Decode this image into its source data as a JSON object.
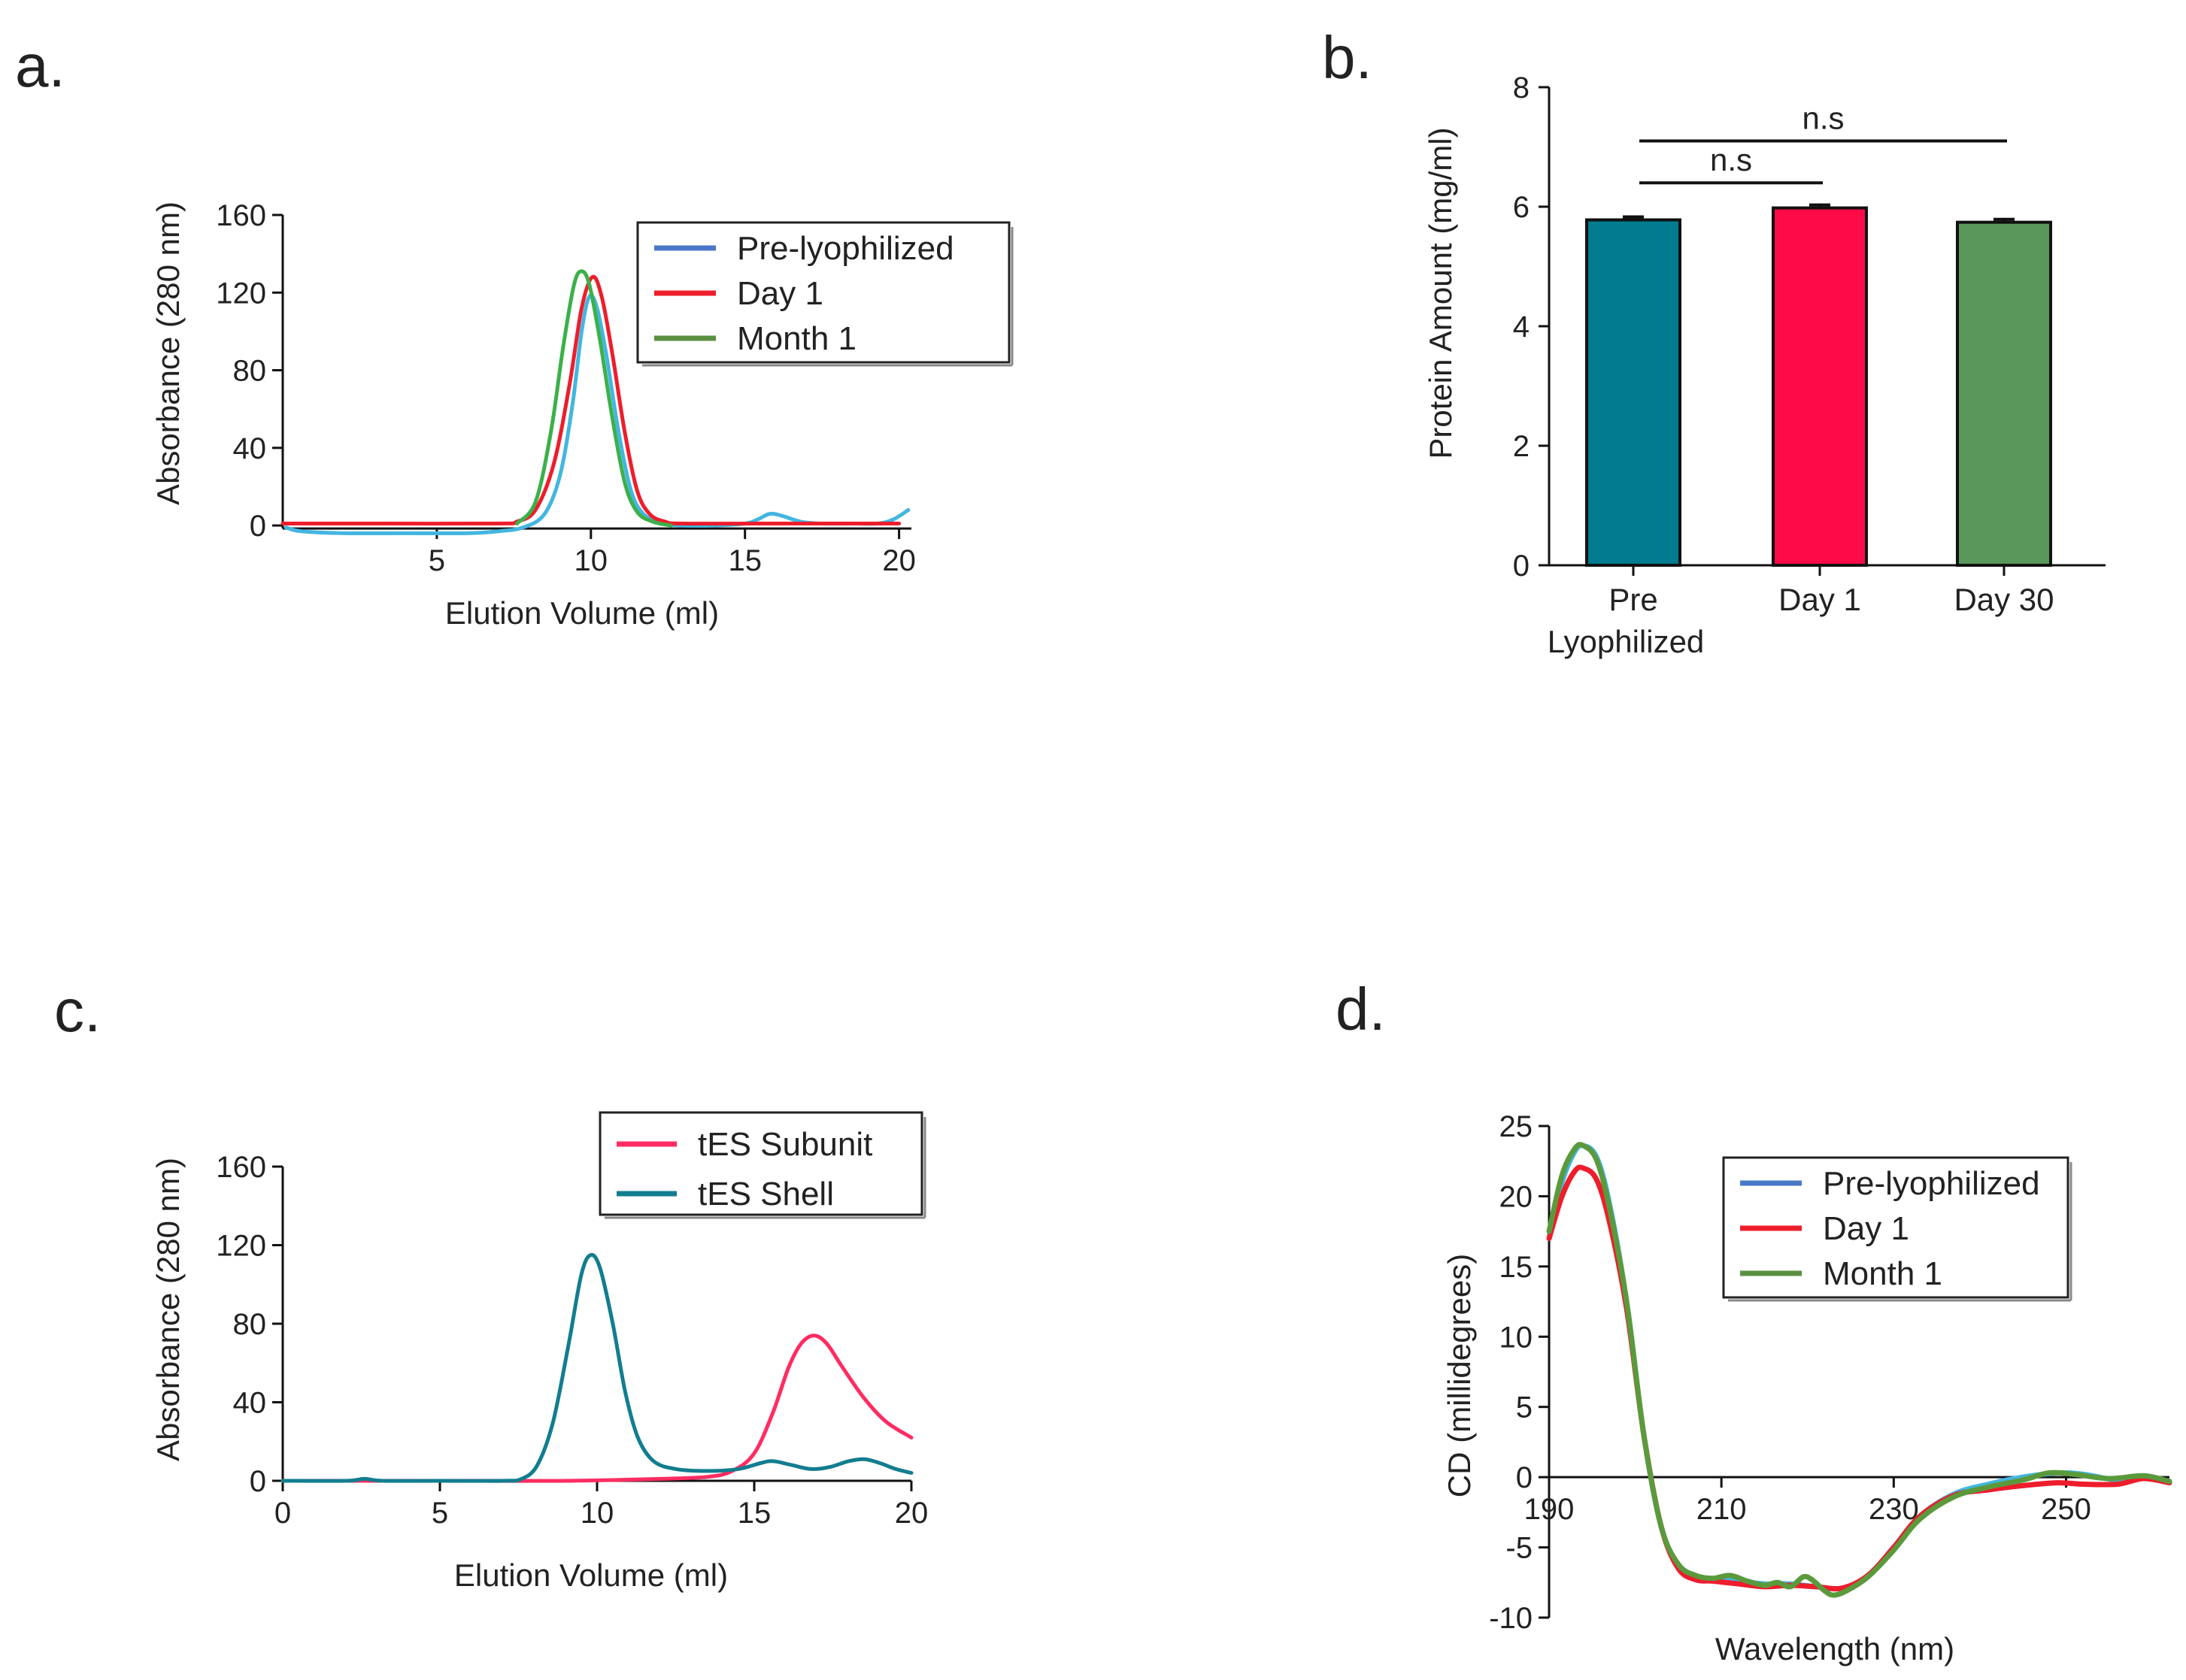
{
  "chart_data": [
    {
      "panel": "a.",
      "type": "line",
      "xlabel": "Elution Volume (ml)",
      "ylabel": "Absorbance (280 nm)",
      "xlim": [
        0,
        20.4
      ],
      "ylim": [
        -5,
        160
      ],
      "xticks": [
        5,
        10,
        15,
        20
      ],
      "yticks": [
        0,
        40,
        80,
        120,
        160
      ],
      "legend_position": "top-right",
      "series": [
        {
          "name": "Pre-lyophilized",
          "legend_color": "#4a78c8",
          "color": "#43b6e0",
          "points": [
            [
              0.1,
              -1
            ],
            [
              0.6,
              -3
            ],
            [
              2,
              -4
            ],
            [
              4,
              -4
            ],
            [
              6,
              -4
            ],
            [
              7,
              -3
            ],
            [
              7.8,
              -1
            ],
            [
              8.5,
              6
            ],
            [
              9,
              26
            ],
            [
              9.4,
              62
            ],
            [
              9.7,
              100
            ],
            [
              9.95,
              118
            ],
            [
              10.2,
              112
            ],
            [
              10.5,
              88
            ],
            [
              10.9,
              48
            ],
            [
              11.3,
              18
            ],
            [
              11.7,
              6
            ],
            [
              12.3,
              1
            ],
            [
              13,
              0
            ],
            [
              14,
              0
            ],
            [
              15,
              1
            ],
            [
              15.4,
              3
            ],
            [
              15.8,
              6
            ],
            [
              16.2,
              5
            ],
            [
              16.8,
              2
            ],
            [
              17.5,
              1
            ],
            [
              18.5,
              1
            ],
            [
              19.3,
              1
            ],
            [
              19.8,
              3
            ],
            [
              20.3,
              8
            ]
          ]
        },
        {
          "name": "Day 1",
          "legend_color": "#ee1d2c",
          "color": "#ee1d2c",
          "points": [
            [
              0,
              1
            ],
            [
              3,
              1
            ],
            [
              7,
              1
            ],
            [
              7.6,
              2
            ],
            [
              8.2,
              8
            ],
            [
              8.8,
              32
            ],
            [
              9.3,
              72
            ],
            [
              9.7,
              112
            ],
            [
              10.05,
              128
            ],
            [
              10.35,
              118
            ],
            [
              10.7,
              88
            ],
            [
              11.1,
              48
            ],
            [
              11.5,
              18
            ],
            [
              11.9,
              6
            ],
            [
              12.4,
              2
            ],
            [
              13,
              1
            ],
            [
              16,
              1
            ],
            [
              20,
              1
            ]
          ]
        },
        {
          "name": "Month 1",
          "legend_color": "#5a8f42",
          "color": "#3cb04a",
          "points": [
            [
              7.6,
              1
            ],
            [
              8.2,
              12
            ],
            [
              8.7,
              48
            ],
            [
              9.1,
              92
            ],
            [
              9.45,
              124
            ],
            [
              9.7,
              131
            ],
            [
              9.95,
              124
            ],
            [
              10.3,
              95
            ],
            [
              10.7,
              55
            ],
            [
              11.1,
              22
            ],
            [
              11.5,
              7
            ],
            [
              12,
              2
            ],
            [
              12.6,
              0
            ]
          ]
        }
      ]
    },
    {
      "panel": "b.",
      "type": "bar",
      "ylabel": "Protein Amount (mg/ml)",
      "ylim": [
        0,
        8
      ],
      "yticks": [
        0,
        2,
        4,
        6,
        8
      ],
      "categories": [
        "Pre\nLyophilized",
        "Day 1",
        "Day 30"
      ],
      "values": [
        5.78,
        5.98,
        5.74
      ],
      "errors": [
        0.05,
        0.05,
        0.05
      ],
      "colors": [
        "#007b8f",
        "#ff0a48",
        "#59985a"
      ],
      "significance": [
        {
          "from": 0,
          "to": 1,
          "label": "n.s",
          "y": 6.4
        },
        {
          "from": 0,
          "to": 2,
          "label": "n.s",
          "y": 7.1
        }
      ]
    },
    {
      "panel": "c.",
      "type": "line",
      "xlabel": "Elution Volume (ml)",
      "ylabel": "Absorbance (280 nm)",
      "xlim": [
        0,
        20
      ],
      "ylim": [
        0,
        160
      ],
      "xticks": [
        0,
        5,
        10,
        15,
        20
      ],
      "yticks": [
        0,
        40,
        80,
        120,
        160
      ],
      "legend_position": "top-right",
      "series": [
        {
          "name": "tES Subunit",
          "legend_color": "#ff2c62",
          "color": "#ff2c62",
          "points": [
            [
              0,
              0
            ],
            [
              3,
              0
            ],
            [
              6,
              0
            ],
            [
              9,
              0
            ],
            [
              12,
              1
            ],
            [
              13.5,
              2
            ],
            [
              14.3,
              5
            ],
            [
              15,
              14
            ],
            [
              15.6,
              35
            ],
            [
              16.1,
              58
            ],
            [
              16.5,
              70
            ],
            [
              16.9,
              74
            ],
            [
              17.3,
              70
            ],
            [
              17.8,
              58
            ],
            [
              18.5,
              42
            ],
            [
              19.2,
              30
            ],
            [
              20,
              22
            ]
          ]
        },
        {
          "name": "tES Shell",
          "legend_color": "#127d8f",
          "color": "#127d8f",
          "points": [
            [
              0,
              0
            ],
            [
              2,
              0
            ],
            [
              2.6,
              1
            ],
            [
              3.2,
              0
            ],
            [
              5,
              0
            ],
            [
              7,
              0
            ],
            [
              7.6,
              1
            ],
            [
              8.1,
              8
            ],
            [
              8.6,
              30
            ],
            [
              9.1,
              70
            ],
            [
              9.5,
              105
            ],
            [
              9.8,
              115
            ],
            [
              10.1,
              108
            ],
            [
              10.5,
              80
            ],
            [
              10.9,
              45
            ],
            [
              11.3,
              22
            ],
            [
              11.8,
              10
            ],
            [
              12.5,
              6
            ],
            [
              13.5,
              5
            ],
            [
              14.5,
              6
            ],
            [
              15.2,
              9
            ],
            [
              15.6,
              10
            ],
            [
              16.2,
              8
            ],
            [
              16.8,
              6
            ],
            [
              17.4,
              7
            ],
            [
              18,
              10
            ],
            [
              18.5,
              11
            ],
            [
              19,
              9
            ],
            [
              19.5,
              6
            ],
            [
              20,
              4
            ]
          ]
        }
      ]
    },
    {
      "panel": "d.",
      "type": "line",
      "xlabel": "Wavelength (nm)",
      "ylabel": "CD (millidegrees)",
      "xlim": [
        190,
        262
      ],
      "ylim": [
        -10,
        25
      ],
      "xticks": [
        190,
        210,
        230,
        250
      ],
      "yticks": [
        -10,
        -5,
        0,
        5,
        10,
        15,
        20,
        25
      ],
      "legend_position": "top-right",
      "series": [
        {
          "name": "Pre-lyophilized",
          "legend_color": "#4a78c8",
          "color": "#43b6e0",
          "points": [
            [
              190,
              17
            ],
            [
              191.5,
              21
            ],
            [
              193,
              23.2
            ],
            [
              194,
              23.6
            ],
            [
              195.5,
              22.8
            ],
            [
              197,
              19.5
            ],
            [
              199,
              12.5
            ],
            [
              201,
              3
            ],
            [
              203,
              -3.5
            ],
            [
              205,
              -6.3
            ],
            [
              207,
              -7.1
            ],
            [
              209,
              -7.3
            ],
            [
              212,
              -7.4
            ],
            [
              215,
              -7.6
            ],
            [
              218,
              -7.6
            ],
            [
              221,
              -7.8
            ],
            [
              224,
              -7.9
            ],
            [
              227,
              -7
            ],
            [
              230,
              -5
            ],
            [
              233,
              -2.8
            ],
            [
              237,
              -1.2
            ],
            [
              241,
              -0.5
            ],
            [
              245,
              0
            ],
            [
              249,
              0.3
            ],
            [
              252,
              0.2
            ],
            [
              256,
              -0.2
            ],
            [
              259,
              0
            ],
            [
              262,
              -0.4
            ]
          ]
        },
        {
          "name": "Day 1",
          "legend_color": "#ee1d2c",
          "color": "#ee1d2c",
          "points": [
            [
              190,
              17
            ],
            [
              191.5,
              20
            ],
            [
              193,
              21.8
            ],
            [
              194,
              22
            ],
            [
              195.5,
              21.2
            ],
            [
              197,
              18.2
            ],
            [
              199,
              12
            ],
            [
              201,
              3
            ],
            [
              203,
              -3.5
            ],
            [
              205,
              -6.5
            ],
            [
              207,
              -7.3
            ],
            [
              209,
              -7.4
            ],
            [
              212,
              -7.6
            ],
            [
              215,
              -7.8
            ],
            [
              218,
              -7.7
            ],
            [
              221,
              -7.8
            ],
            [
              224,
              -7.9
            ],
            [
              227,
              -7
            ],
            [
              230,
              -5
            ],
            [
              233,
              -2.8
            ],
            [
              237,
              -1.3
            ],
            [
              241,
              -0.9
            ],
            [
              245,
              -0.6
            ],
            [
              249,
              -0.4
            ],
            [
              252,
              -0.5
            ],
            [
              256,
              -0.5
            ],
            [
              259,
              -0.1
            ],
            [
              262,
              -0.4
            ]
          ]
        },
        {
          "name": "Month 1",
          "legend_color": "#5a8f42",
          "color": "#5a9a3c",
          "points": [
            [
              190,
              17.5
            ],
            [
              191.5,
              21.5
            ],
            [
              193,
              23.4
            ],
            [
              194,
              23.6
            ],
            [
              195.5,
              22.6
            ],
            [
              197,
              19.2
            ],
            [
              199,
              12.5
            ],
            [
              201,
              3
            ],
            [
              203,
              -3.5
            ],
            [
              205,
              -6.2
            ],
            [
              207,
              -7
            ],
            [
              209,
              -7.2
            ],
            [
              211,
              -7
            ],
            [
              213,
              -7.4
            ],
            [
              215,
              -7.7
            ],
            [
              216.5,
              -7.5
            ],
            [
              218,
              -7.8
            ],
            [
              219.5,
              -7.1
            ],
            [
              220.5,
              -7.3
            ],
            [
              222,
              -8.1
            ],
            [
              223,
              -8.4
            ],
            [
              224.5,
              -8.1
            ],
            [
              227,
              -7.1
            ],
            [
              230,
              -5.2
            ],
            [
              233,
              -3
            ],
            [
              237,
              -1.4
            ],
            [
              241,
              -0.7
            ],
            [
              245,
              -0.2
            ],
            [
              248,
              0.3
            ],
            [
              251,
              0.2
            ],
            [
              255,
              -0.1
            ],
            [
              259,
              0.1
            ],
            [
              262,
              -0.3
            ]
          ]
        }
      ]
    }
  ]
}
